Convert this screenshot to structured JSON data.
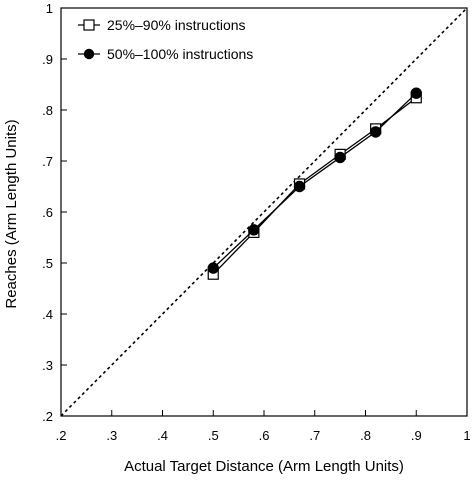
{
  "chart_data": {
    "type": "line",
    "xlabel": "Actual Target Distance (Arm Length Units)",
    "ylabel": "Reaches (Arm Length Units)",
    "xlim": [
      0.2,
      1.0
    ],
    "ylim": [
      0.2,
      1.0
    ],
    "x_ticks": [
      ".2",
      ".3",
      ".4",
      ".5",
      ".6",
      ".7",
      ".8",
      ".9",
      "1"
    ],
    "y_ticks": [
      ".2",
      ".3",
      ".4",
      ".5",
      ".6",
      ".7",
      ".8",
      ".9",
      "1"
    ],
    "legend_position": "top-left",
    "reference_line": {
      "type": "identity",
      "style": "dotted"
    },
    "series": [
      {
        "name": "25%–90% instructions",
        "marker": "open-square",
        "x": [
          0.5,
          0.58,
          0.67,
          0.75,
          0.82,
          0.9
        ],
        "y": [
          0.478,
          0.56,
          0.655,
          0.713,
          0.763,
          0.824
        ]
      },
      {
        "name": "50%–100% instructions",
        "marker": "filled-circle",
        "x": [
          0.5,
          0.58,
          0.67,
          0.75,
          0.82,
          0.9
        ],
        "y": [
          0.49,
          0.565,
          0.65,
          0.707,
          0.757,
          0.833
        ]
      }
    ]
  }
}
